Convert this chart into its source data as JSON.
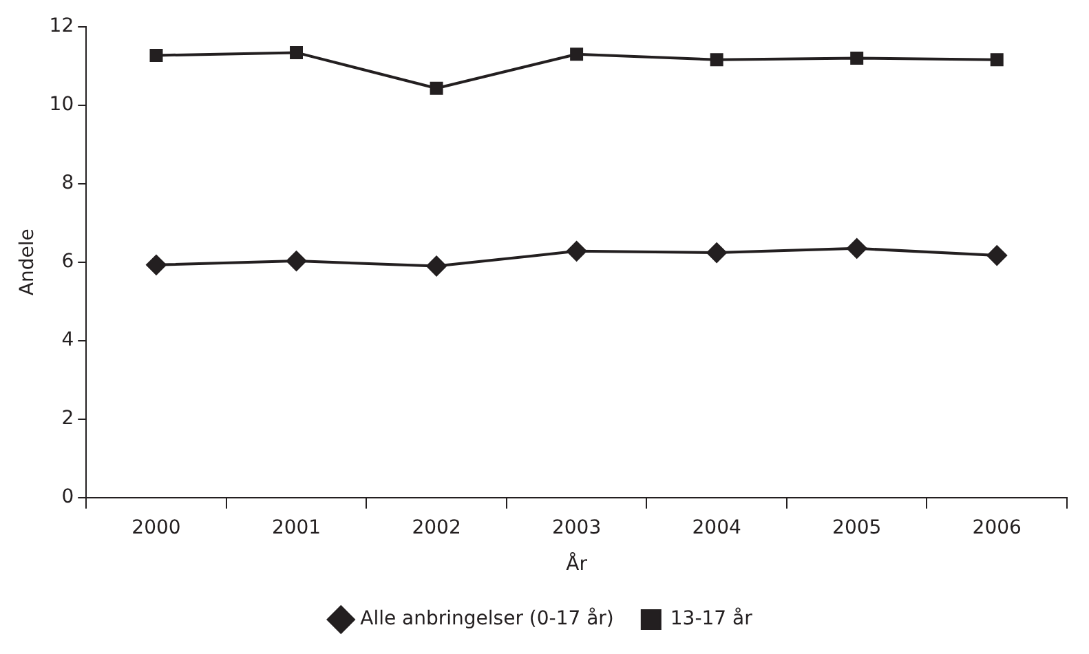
{
  "chart_data": {
    "type": "line",
    "xlabel": "År",
    "ylabel": "Andele",
    "categories": [
      "2000",
      "2001",
      "2002",
      "2003",
      "2004",
      "2005",
      "2006"
    ],
    "series": [
      {
        "name": "Alle anbringelser (0-17 år)",
        "color": "#231f20",
        "marker": "diamond",
        "values": [
          5.93,
          6.03,
          5.9,
          6.28,
          6.24,
          6.35,
          6.17
        ]
      },
      {
        "name": "13-17 år",
        "color": "#231f20",
        "marker": "square",
        "values": [
          11.27,
          11.34,
          10.43,
          11.3,
          11.16,
          11.2,
          11.16
        ]
      }
    ],
    "ylim": [
      0,
      12
    ],
    "yticks": [
      0,
      2,
      4,
      6,
      8,
      10,
      12
    ],
    "grid": false,
    "legend": "bottom",
    "line_style": "solid"
  }
}
